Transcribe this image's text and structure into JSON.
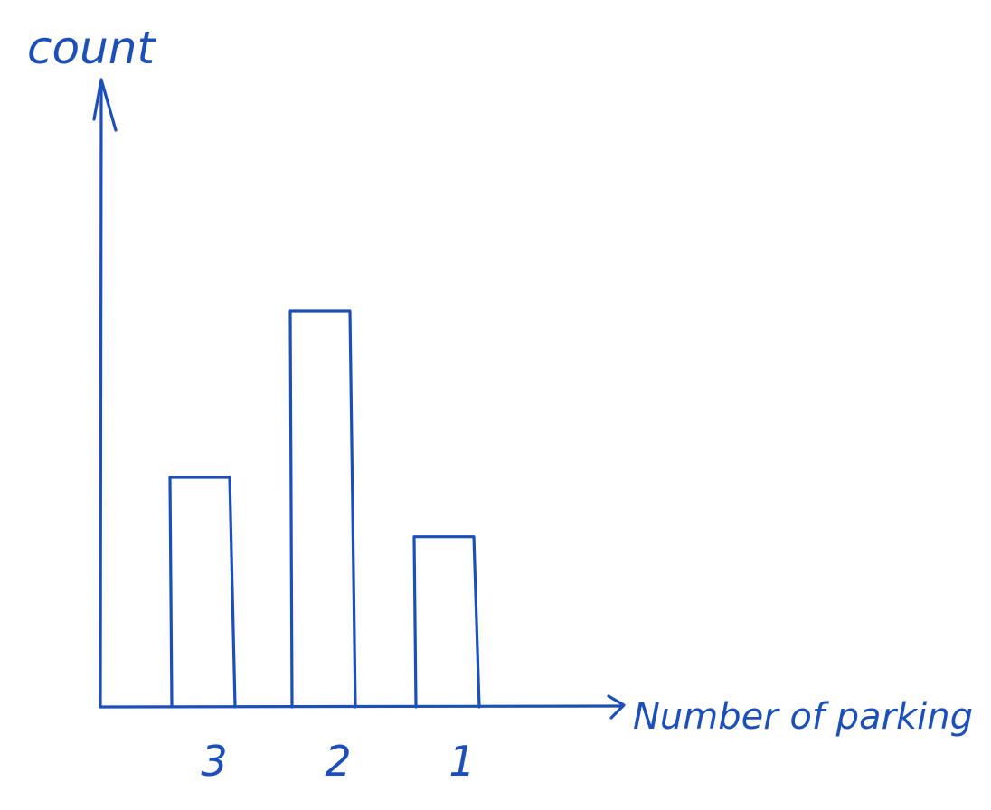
{
  "chart_data": {
    "type": "bar",
    "title": "",
    "xlabel": "Number of parking",
    "ylabel": "count",
    "categories": [
      "3",
      "2",
      "1"
    ],
    "values": [
      0.58,
      1.0,
      0.43
    ],
    "ylim": [
      0,
      1.58
    ],
    "grid": false,
    "legend": "none"
  },
  "colors": {
    "ink": "#1d4fb8",
    "background": "#ffffff"
  }
}
